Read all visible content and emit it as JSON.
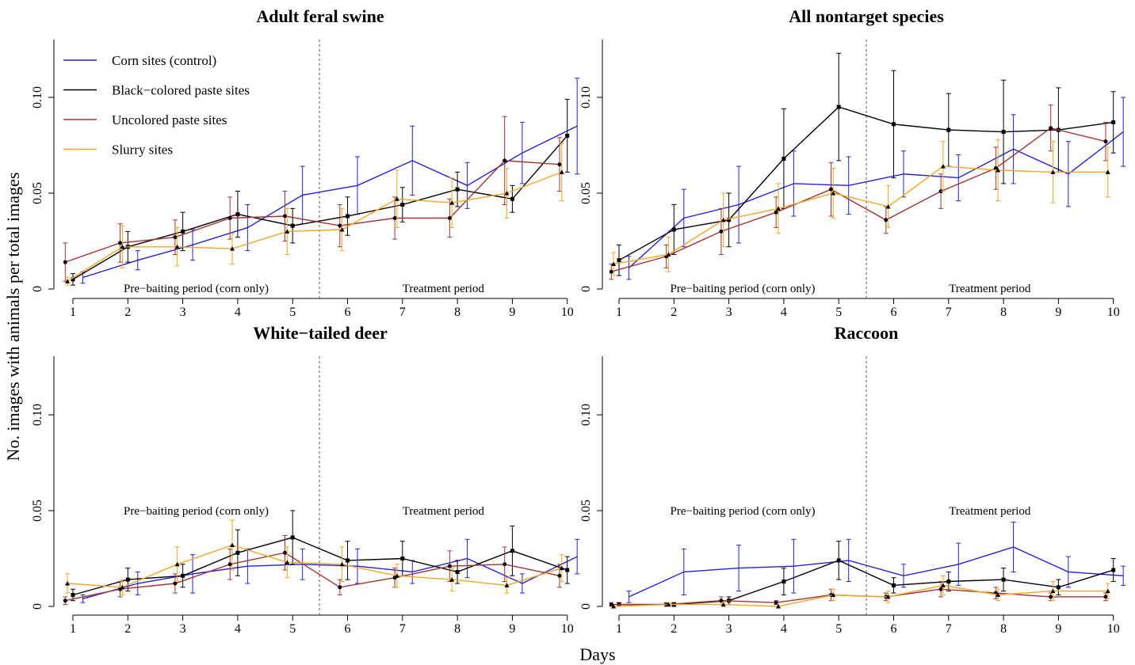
{
  "chart_data": {
    "type": "line",
    "xlabel": "Days",
    "ylabel": "No. images with animals per total images",
    "x": [
      1,
      2,
      3,
      4,
      5,
      6,
      7,
      8,
      9,
      10
    ],
    "y_ticks": [
      "0",
      "0.05",
      "0.10"
    ],
    "ylim": [
      0,
      0.13
    ],
    "period_labels": {
      "pre": "Pre−baiting period (corn only)",
      "treatment": "Treatment period"
    },
    "legend_entries": [
      {
        "name": "Corn sites (control)",
        "color": "#2222dd"
      },
      {
        "name": "Black−colored paste sites",
        "color": "#000000"
      },
      {
        "name": "Uncolored paste sites",
        "color": "#a83232"
      },
      {
        "name": "Slurry sites",
        "color": "#f5a623"
      }
    ],
    "panels": [
      {
        "title": "Adult feral swine",
        "series": [
          {
            "values": [
              0.006,
              0.015,
              0.023,
              0.032,
              0.049,
              0.054,
              0.067,
              0.054,
              0.071,
              0.085
            ],
            "err": [
              0.003,
              0.005,
              0.008,
              0.012,
              0.015,
              0.015,
              0.018,
              0.012,
              0.016,
              0.025
            ]
          },
          {
            "values": [
              0.005,
              0.022,
              0.03,
              0.039,
              0.033,
              0.038,
              0.044,
              0.052,
              0.047,
              0.08
            ],
            "err": [
              0.003,
              0.008,
              0.01,
              0.012,
              0.009,
              0.01,
              0.009,
              0.009,
              0.007,
              0.019
            ]
          },
          {
            "values": [
              0.014,
              0.024,
              0.027,
              0.037,
              0.038,
              0.033,
              0.037,
              0.037,
              0.067,
              0.065
            ],
            "err": [
              0.01,
              0.01,
              0.009,
              0.011,
              0.013,
              0.011,
              0.011,
              0.01,
              0.023,
              0.014
            ]
          },
          {
            "values": [
              0.004,
              0.022,
              0.022,
              0.021,
              0.03,
              0.031,
              0.047,
              0.045,
              0.05,
              0.061
            ],
            "err": [
              0.002,
              0.011,
              0.01,
              0.008,
              0.012,
              0.011,
              0.015,
              0.013,
              0.013,
              0.015
            ]
          }
        ]
      },
      {
        "title": "All nontarget species",
        "series": [
          {
            "values": [
              0.011,
              0.037,
              0.044,
              0.055,
              0.054,
              0.06,
              0.058,
              0.073,
              0.06,
              0.082
            ],
            "err": [
              0.006,
              0.015,
              0.02,
              0.017,
              0.015,
              0.012,
              0.012,
              0.018,
              0.017,
              0.018
            ]
          },
          {
            "values": [
              0.015,
              0.031,
              0.036,
              0.068,
              0.095,
              0.086,
              0.083,
              0.082,
              0.083,
              0.087
            ],
            "err": [
              0.008,
              0.013,
              0.014,
              0.026,
              0.028,
              0.028,
              0.019,
              0.027,
              0.022,
              0.016
            ]
          },
          {
            "values": [
              0.009,
              0.017,
              0.03,
              0.04,
              0.052,
              0.036,
              0.051,
              0.063,
              0.084,
              0.077
            ],
            "err": [
              0.004,
              0.006,
              0.012,
              0.008,
              0.014,
              0.007,
              0.009,
              0.011,
              0.012,
              0.01
            ]
          },
          {
            "values": [
              0.013,
              0.018,
              0.036,
              0.042,
              0.05,
              0.043,
              0.064,
              0.062,
              0.061,
              0.061
            ],
            "err": [
              0.006,
              0.009,
              0.014,
              0.013,
              0.013,
              0.011,
              0.013,
              0.016,
              0.016,
              0.013
            ]
          }
        ]
      },
      {
        "title": "White−tailed deer",
        "series": [
          {
            "values": [
              0.004,
              0.012,
              0.017,
              0.021,
              0.022,
              0.021,
              0.018,
              0.025,
              0.012,
              0.026
            ],
            "err": [
              0.002,
              0.006,
              0.01,
              0.009,
              0.008,
              0.009,
              0.006,
              0.01,
              0.005,
              0.009
            ]
          },
          {
            "values": [
              0.006,
              0.014,
              0.016,
              0.028,
              0.036,
              0.024,
              0.025,
              0.018,
              0.029,
              0.019
            ],
            "err": [
              0.003,
              0.006,
              0.006,
              0.012,
              0.014,
              0.01,
              0.009,
              0.006,
              0.013,
              0.007
            ]
          },
          {
            "values": [
              0.003,
              0.009,
              0.012,
              0.022,
              0.028,
              0.01,
              0.015,
              0.021,
              0.022,
              0.016
            ],
            "err": [
              0.002,
              0.004,
              0.005,
              0.008,
              0.009,
              0.004,
              0.005,
              0.008,
              0.009,
              0.006
            ]
          },
          {
            "values": [
              0.012,
              0.01,
              0.022,
              0.032,
              0.023,
              0.022,
              0.016,
              0.014,
              0.011,
              0.02
            ],
            "err": [
              0.005,
              0.004,
              0.009,
              0.013,
              0.008,
              0.009,
              0.006,
              0.006,
              0.004,
              0.007
            ]
          }
        ]
      },
      {
        "title": "Raccoon",
        "series": [
          {
            "values": [
              0.005,
              0.018,
              0.02,
              0.021,
              0.024,
              0.016,
              0.022,
              0.031,
              0.018,
              0.016
            ],
            "err": [
              0.003,
              0.012,
              0.012,
              0.014,
              0.011,
              0.006,
              0.011,
              0.013,
              0.008,
              0.005
            ]
          },
          {
            "values": [
              0.001,
              0.001,
              0.003,
              0.013,
              0.024,
              0.011,
              0.013,
              0.014,
              0.01,
              0.019
            ],
            "err": [
              0.001,
              0.001,
              0.002,
              0.007,
              0.01,
              0.004,
              0.005,
              0.006,
              0.004,
              0.006
            ]
          },
          {
            "values": [
              0.001,
              0.001,
              0.003,
              0.002,
              0.006,
              0.005,
              0.009,
              0.007,
              0.005,
              0.005
            ],
            "err": [
              0.001,
              0.001,
              0.002,
              0.001,
              0.003,
              0.002,
              0.004,
              0.003,
              0.002,
              0.002
            ]
          },
          {
            "values": [
              0.0,
              0.001,
              0.001,
              0.0,
              0.006,
              0.005,
              0.011,
              0.006,
              0.008,
              0.008
            ],
            "err": [
              0.0,
              0.001,
              0.001,
              0.0,
              0.003,
              0.003,
              0.005,
              0.003,
              0.005,
              0.004
            ]
          }
        ]
      }
    ]
  }
}
